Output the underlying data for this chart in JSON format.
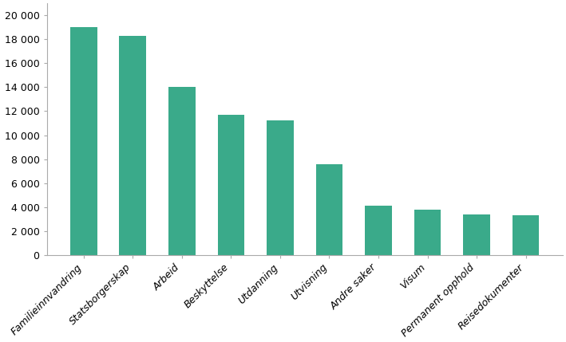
{
  "categories": [
    "Familieinnvandring",
    "Statsborgerskap",
    "Arbeid",
    "Beskyttelse",
    "Utdanning",
    "Utvisning",
    "Andre saker",
    "Visum",
    "Permanent opphold",
    "Reisedokumenter"
  ],
  "values": [
    19000,
    18300,
    14000,
    11700,
    11200,
    7600,
    4100,
    3800,
    3400,
    3300
  ],
  "bar_color": "#3aaa8a",
  "background_color": "#ffffff",
  "ylim": [
    0,
    21000
  ],
  "yticks": [
    0,
    2000,
    4000,
    6000,
    8000,
    10000,
    12000,
    14000,
    16000,
    18000,
    20000
  ],
  "ylabel": "",
  "xlabel": "",
  "title": "",
  "bar_width": 0.55,
  "tick_fontsize": 9,
  "label_fontsize": 9,
  "label_rotation": 45
}
